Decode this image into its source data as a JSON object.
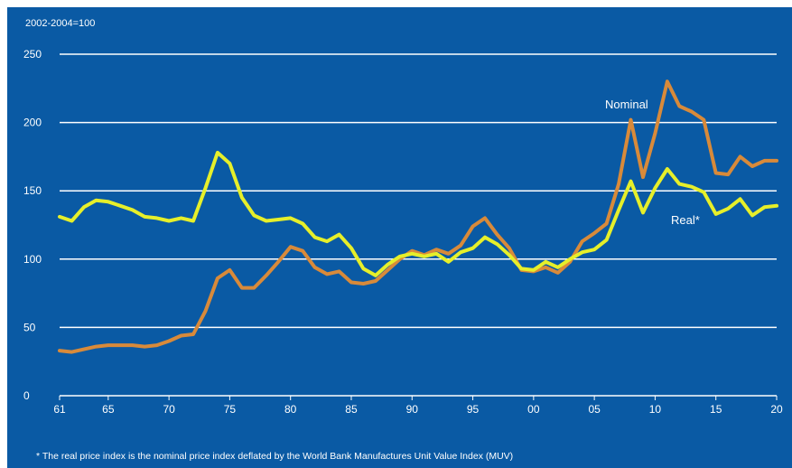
{
  "chart_data": {
    "type": "line",
    "unit_label": "2002-2004=100",
    "note": "* The real price index is the nominal price index deflated by the World Bank Manufactures Unit Value Index (MUV)",
    "x": [
      1961,
      1962,
      1963,
      1964,
      1965,
      1966,
      1967,
      1968,
      1969,
      1970,
      1971,
      1972,
      1973,
      1974,
      1975,
      1976,
      1977,
      1978,
      1979,
      1980,
      1981,
      1982,
      1983,
      1984,
      1985,
      1986,
      1987,
      1988,
      1989,
      1990,
      1991,
      1992,
      1993,
      1994,
      1995,
      1996,
      1997,
      1998,
      1999,
      2000,
      2001,
      2002,
      2003,
      2004,
      2005,
      2006,
      2007,
      2008,
      2009,
      2010,
      2011,
      2012,
      2013,
      2014,
      2015,
      2016,
      2017,
      2018,
      2019,
      2020
    ],
    "xticks": [
      1961,
      1965,
      1970,
      1975,
      1980,
      1985,
      1990,
      1995,
      2000,
      2005,
      2010,
      2015,
      2020
    ],
    "xtick_labels": [
      "61",
      "65",
      "70",
      "75",
      "80",
      "85",
      "90",
      "95",
      "00",
      "05",
      "10",
      "15",
      "20"
    ],
    "yticks": [
      0,
      50,
      100,
      150,
      200,
      250
    ],
    "ylim": [
      0,
      250
    ],
    "grid": true,
    "colors": {
      "background": "#0a5aa4",
      "nominal": "#d88a3a",
      "real": "#e6ef2a",
      "grid": "#ffffff"
    },
    "series": [
      {
        "name": "Nominal",
        "color": "#d88a3a",
        "values": [
          33,
          32,
          34,
          36,
          37,
          37,
          37,
          36,
          37,
          40,
          44,
          45,
          62,
          86,
          92,
          79,
          79,
          88,
          98,
          109,
          106,
          94,
          89,
          91,
          83,
          82,
          84,
          92,
          100,
          106,
          103,
          107,
          104,
          110,
          124,
          130,
          118,
          108,
          92,
          91,
          94,
          90,
          98,
          113,
          119,
          126,
          155,
          202,
          160,
          192,
          230,
          212,
          208,
          202,
          163,
          162,
          175,
          168,
          172,
          172
        ]
      },
      {
        "name": "Real*",
        "color": "#e6ef2a",
        "values": [
          131,
          128,
          138,
          143,
          142,
          139,
          136,
          131,
          130,
          128,
          130,
          128,
          152,
          178,
          170,
          145,
          132,
          128,
          129,
          130,
          126,
          116,
          113,
          118,
          108,
          93,
          88,
          96,
          102,
          104,
          102,
          104,
          98,
          105,
          108,
          116,
          111,
          103,
          93,
          92,
          98,
          94,
          100,
          105,
          107,
          114,
          136,
          157,
          134,
          152,
          166,
          155,
          153,
          149,
          133,
          137,
          144,
          132,
          138,
          139
        ]
      }
    ]
  }
}
